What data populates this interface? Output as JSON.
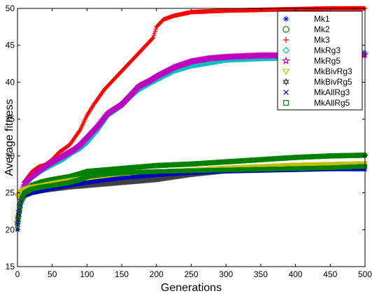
{
  "chart_data": {
    "type": "line",
    "xlabel": "Generations",
    "ylabel": "Average fitness",
    "xlim": [
      0,
      500
    ],
    "ylim": [
      15,
      50
    ],
    "xticks": [
      0,
      50,
      100,
      150,
      200,
      250,
      300,
      350,
      400,
      450,
      500
    ],
    "yticks": [
      15,
      20,
      25,
      30,
      35,
      40,
      45,
      50
    ],
    "grid": false,
    "legend_position": "top-right",
    "series": [
      {
        "name": "Mk1",
        "color": "#0000ff",
        "marker": "asterisk",
        "x": [
          0,
          3,
          6,
          10,
          20,
          35,
          50,
          75,
          100,
          125,
          150,
          175,
          200,
          250,
          300,
          350,
          400,
          450,
          500
        ],
        "y": [
          20.0,
          22.5,
          24.2,
          24.8,
          25.2,
          25.5,
          25.8,
          26.2,
          26.6,
          26.9,
          27.1,
          27.3,
          27.5,
          27.8,
          28.0,
          28.1,
          28.2,
          28.3,
          28.4
        ]
      },
      {
        "name": "Mk2",
        "color": "#008000",
        "marker": "circle",
        "x": [
          0,
          3,
          6,
          10,
          20,
          35,
          50,
          75,
          90,
          100,
          125,
          150,
          175,
          200,
          250,
          300,
          350,
          400,
          450,
          500
        ],
        "y": [
          20.8,
          23.0,
          24.5,
          25.3,
          26.0,
          26.5,
          26.8,
          27.2,
          27.6,
          27.9,
          28.1,
          28.3,
          28.5,
          28.7,
          28.9,
          29.2,
          29.5,
          29.8,
          30.0,
          30.1
        ]
      },
      {
        "name": "Mk3",
        "color": "#ff0000",
        "marker": "plus",
        "x": [
          0,
          5,
          10,
          20,
          30,
          40,
          50,
          60,
          75,
          90,
          100,
          110,
          125,
          140,
          150,
          160,
          175,
          185,
          195,
          200,
          210,
          225,
          250,
          300,
          350,
          400,
          450,
          500
        ],
        "y": [
          21.0,
          24.0,
          26.5,
          27.8,
          28.5,
          28.8,
          29.5,
          30.5,
          31.5,
          33.5,
          35.5,
          37.0,
          39.0,
          40.5,
          41.5,
          42.5,
          44.0,
          45.0,
          46.0,
          47.5,
          48.5,
          49.0,
          49.5,
          49.7,
          49.8,
          49.9,
          50.0,
          50.0
        ]
      },
      {
        "name": "MkRg3",
        "color": "#00c0c0",
        "marker": "diamond",
        "x": [
          0,
          5,
          10,
          20,
          35,
          50,
          65,
          80,
          90,
          100,
          115,
          130,
          150,
          165,
          175,
          190,
          200,
          225,
          250,
          275,
          300,
          325,
          350,
          400,
          450,
          500
        ],
        "y": [
          21.0,
          24.5,
          26.0,
          27.0,
          28.0,
          28.8,
          29.5,
          30.5,
          31.0,
          31.8,
          33.5,
          35.5,
          36.8,
          38.2,
          39.0,
          39.8,
          40.3,
          41.5,
          42.2,
          42.6,
          43.0,
          43.1,
          43.2,
          43.3,
          43.4,
          44.0
        ]
      },
      {
        "name": "MkRg5",
        "color": "#c000c0",
        "marker": "star",
        "x": [
          0,
          5,
          10,
          20,
          35,
          50,
          65,
          80,
          90,
          100,
          115,
          130,
          150,
          165,
          175,
          190,
          200,
          225,
          250,
          275,
          300,
          325,
          350,
          400,
          450,
          500
        ],
        "y": [
          21.0,
          24.8,
          26.3,
          27.2,
          28.3,
          29.2,
          30.0,
          30.8,
          31.5,
          32.5,
          34.0,
          35.8,
          37.0,
          38.5,
          39.5,
          40.2,
          40.8,
          42.0,
          42.8,
          43.2,
          43.4,
          43.5,
          43.6,
          43.6,
          43.6,
          43.7
        ]
      },
      {
        "name": "MkBivRg3",
        "color": "#c0c000",
        "marker": "triangle-down",
        "x": [
          0,
          5,
          10,
          20,
          35,
          50,
          75,
          100,
          125,
          150,
          175,
          200,
          250,
          300,
          350,
          400,
          450,
          500
        ],
        "y": [
          24.5,
          25.2,
          25.5,
          25.8,
          26.0,
          26.3,
          26.7,
          27.0,
          27.3,
          27.5,
          27.7,
          27.9,
          28.1,
          28.4,
          28.6,
          28.8,
          28.9,
          29.0
        ]
      },
      {
        "name": "MkBivRg5",
        "color": "#404040",
        "marker": "hexagram",
        "x": [
          0,
          5,
          10,
          20,
          35,
          50,
          75,
          100,
          125,
          150,
          175,
          200,
          250,
          300,
          350,
          400,
          450,
          500
        ],
        "y": [
          21.5,
          24.0,
          24.6,
          25.0,
          25.3,
          25.5,
          25.8,
          26.0,
          26.2,
          26.4,
          26.6,
          26.8,
          27.5,
          28.0,
          28.1,
          28.2,
          28.3,
          28.5
        ]
      },
      {
        "name": "MkAllRg3",
        "color": "#0000c0",
        "marker": "x",
        "x": [
          0,
          3,
          6,
          10,
          20,
          35,
          50,
          75,
          100,
          125,
          150,
          175,
          200,
          250,
          300,
          350,
          400,
          450,
          500
        ],
        "y": [
          20.0,
          22.0,
          23.8,
          24.6,
          25.0,
          25.3,
          25.6,
          26.0,
          26.4,
          26.7,
          27.0,
          27.2,
          27.4,
          27.7,
          27.9,
          28.0,
          28.1,
          28.2,
          28.2
        ]
      },
      {
        "name": "MkAllRg5",
        "color": "#008000",
        "marker": "square",
        "x": [
          0,
          3,
          6,
          10,
          20,
          35,
          50,
          75,
          90,
          100,
          125,
          150,
          175,
          200,
          250,
          300,
          350,
          400,
          450,
          500
        ],
        "y": [
          20.5,
          22.8,
          24.3,
          25.0,
          25.5,
          25.8,
          26.0,
          26.4,
          26.8,
          27.2,
          27.5,
          27.7,
          27.8,
          27.9,
          28.0,
          28.1,
          28.2,
          28.3,
          28.4,
          28.6
        ]
      }
    ]
  }
}
